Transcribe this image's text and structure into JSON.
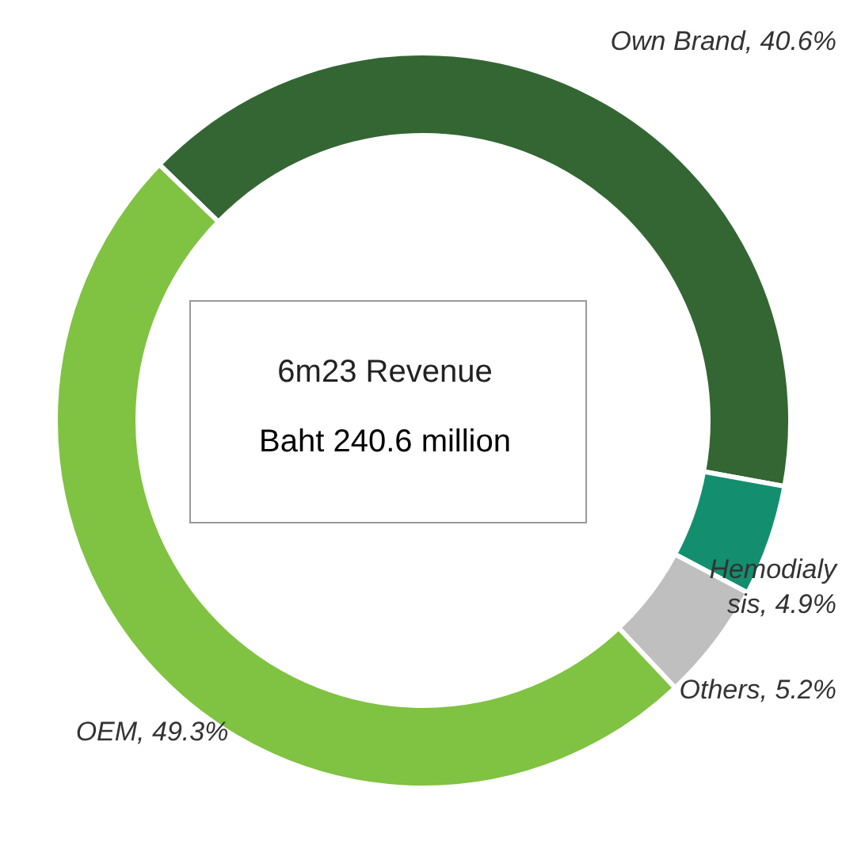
{
  "chart_data": {
    "type": "donut",
    "categories": [
      "Own Brand",
      "Hemodialysis",
      "Others",
      "OEM"
    ],
    "values": [
      40.6,
      4.9,
      5.2,
      49.3
    ],
    "colors": [
      "#336633",
      "#138f6f",
      "#bfbfbf",
      "#80c241"
    ],
    "value_labels": [
      "40.6%",
      "4.9%",
      "5.2%",
      "49.3%"
    ],
    "annotations": [
      "6m23 Revenue",
      "Baht 240.6 million"
    ]
  }
}
